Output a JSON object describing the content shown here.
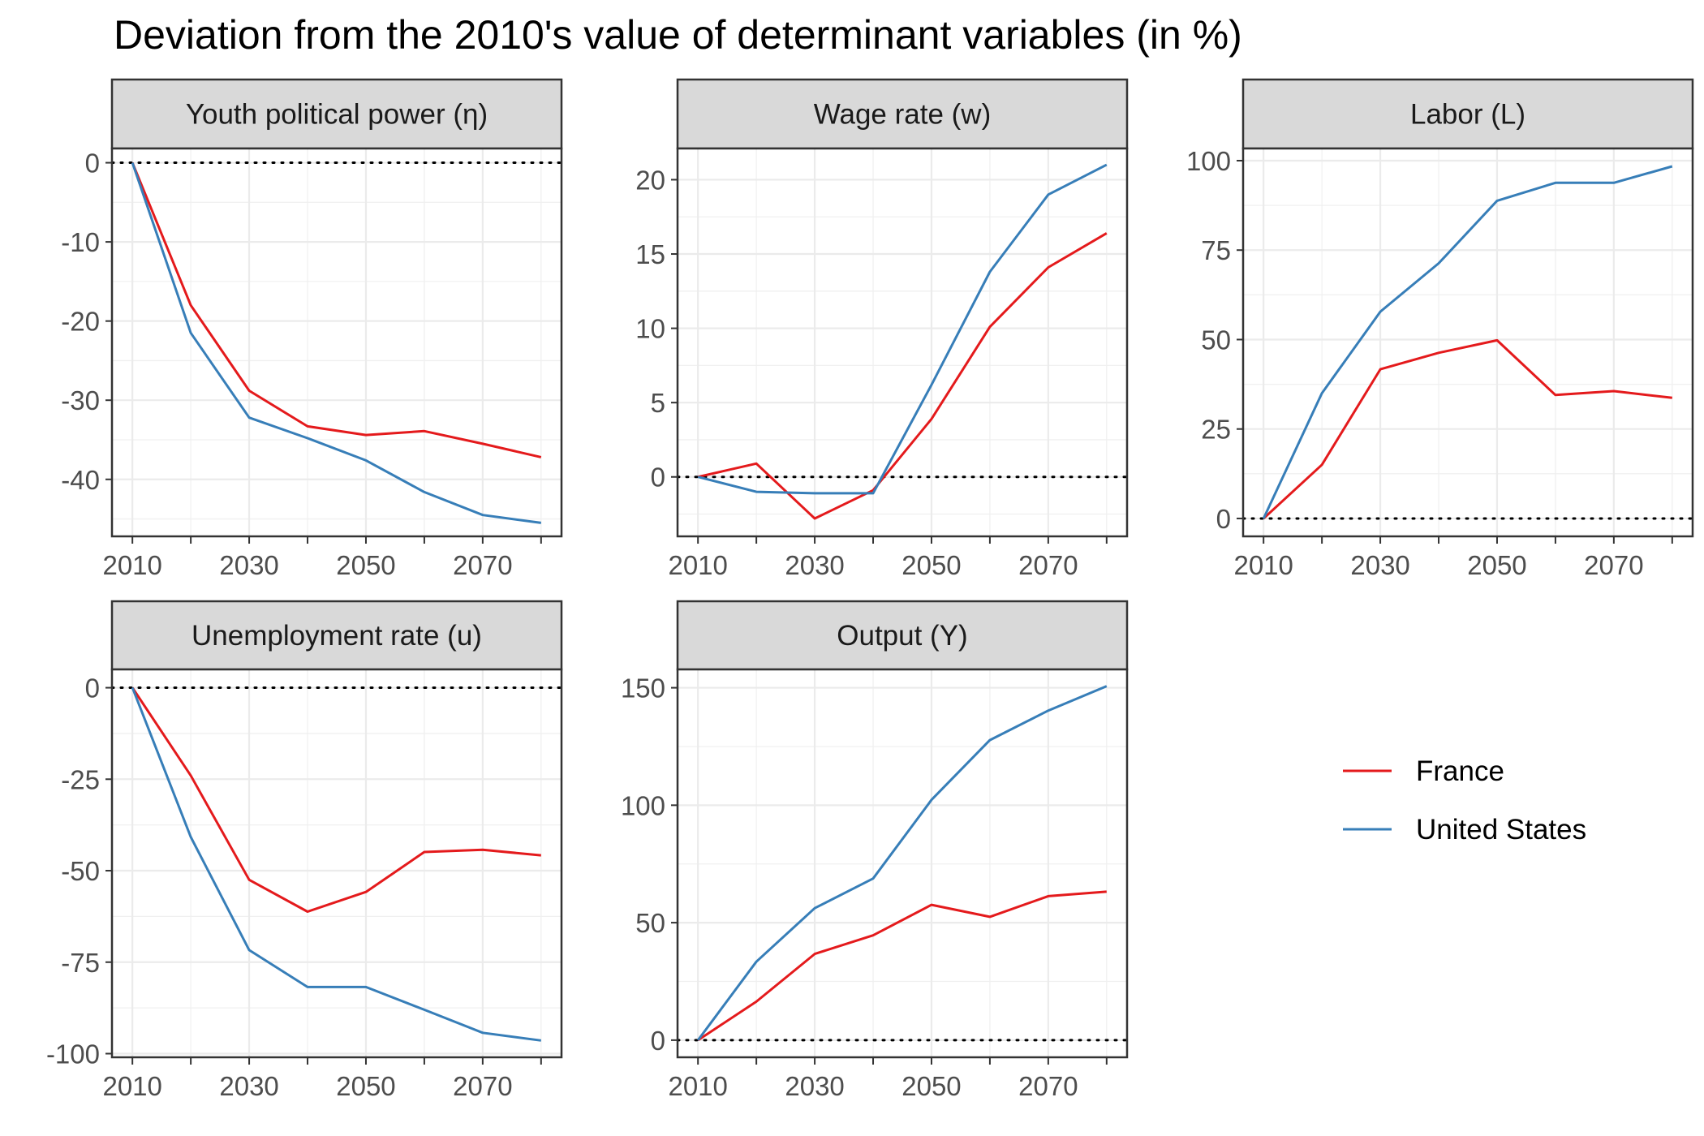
{
  "title": "Deviation from the 2010's value of determinant variables (in %)",
  "colors": {
    "France": "#e41a1c",
    "United States": "#377eb8"
  },
  "legend": {
    "placement": "right",
    "entries": [
      {
        "name": "France",
        "color": "#e41a1c"
      },
      {
        "name": "United States",
        "color": "#377eb8"
      }
    ]
  },
  "chart_data": [
    {
      "type": "line",
      "title": "Youth political power (η)",
      "x": [
        2010,
        2020,
        2030,
        2040,
        2050,
        2060,
        2070,
        2080
      ],
      "x_ticks": [
        2010,
        2030,
        2050,
        2070
      ],
      "y_ticks": [
        0,
        -10,
        -20,
        -30,
        -40
      ],
      "ylim": [
        -47.2,
        1.8
      ],
      "reference_line": 0,
      "grid": true,
      "series": [
        {
          "name": "France",
          "values": [
            0,
            -18,
            -28.8,
            -33.3,
            -34.4,
            -33.9,
            -35.5,
            -37.2
          ]
        },
        {
          "name": "United States",
          "values": [
            0,
            -21.5,
            -32.2,
            -34.8,
            -37.6,
            -41.6,
            -44.5,
            -45.5
          ]
        }
      ]
    },
    {
      "type": "line",
      "title": "Wage rate (w)",
      "x": [
        2010,
        2020,
        2030,
        2040,
        2050,
        2060,
        2070,
        2080
      ],
      "x_ticks": [
        2010,
        2030,
        2050,
        2070
      ],
      "y_ticks": [
        0,
        5,
        10,
        15,
        20
      ],
      "ylim": [
        -4,
        22.1
      ],
      "reference_line": 0,
      "grid": true,
      "series": [
        {
          "name": "France",
          "values": [
            0,
            0.9,
            -2.8,
            -0.9,
            3.9,
            10.1,
            14.1,
            16.4
          ]
        },
        {
          "name": "United States",
          "values": [
            0,
            -1,
            -1.1,
            -1.1,
            6.2,
            13.8,
            19,
            21
          ]
        }
      ]
    },
    {
      "type": "line",
      "title": "Labor (L)",
      "x": [
        2010,
        2020,
        2030,
        2040,
        2050,
        2060,
        2070,
        2080
      ],
      "x_ticks": [
        2010,
        2030,
        2050,
        2070
      ],
      "y_ticks": [
        0,
        25,
        50,
        75,
        100
      ],
      "ylim": [
        -5,
        103.4
      ],
      "reference_line": 0,
      "grid": true,
      "series": [
        {
          "name": "France",
          "values": [
            0,
            15,
            41.7,
            46.3,
            49.8,
            34.5,
            35.6,
            33.7
          ]
        },
        {
          "name": "United States",
          "values": [
            0,
            35,
            57.8,
            71.3,
            88.8,
            93.8,
            93.8,
            98.4
          ]
        }
      ]
    },
    {
      "type": "line",
      "title": "Unemployment rate (u)",
      "x": [
        2010,
        2020,
        2030,
        2040,
        2050,
        2060,
        2070,
        2080
      ],
      "x_ticks": [
        2010,
        2030,
        2050,
        2070
      ],
      "y_ticks": [
        0,
        -25,
        -50,
        -75,
        -100
      ],
      "ylim": [
        -101,
        5
      ],
      "reference_line": 0,
      "grid": true,
      "series": [
        {
          "name": "France",
          "values": [
            0,
            -24,
            -52.5,
            -61.2,
            -55.8,
            -44.9,
            -44.3,
            -45.8
          ]
        },
        {
          "name": "United States",
          "values": [
            0,
            -40.8,
            -71.7,
            -81.8,
            -81.8,
            -88,
            -94.3,
            -96.4
          ]
        }
      ]
    },
    {
      "type": "line",
      "title": "Output (Y)",
      "x": [
        2010,
        2020,
        2030,
        2040,
        2050,
        2060,
        2070,
        2080
      ],
      "x_ticks": [
        2010,
        2030,
        2050,
        2070
      ],
      "y_ticks": [
        0,
        50,
        100,
        150
      ],
      "ylim": [
        -7.3,
        157.8
      ],
      "reference_line": 0,
      "grid": true,
      "series": [
        {
          "name": "France",
          "values": [
            0,
            16.4,
            36.7,
            44.6,
            57.6,
            52.5,
            61.3,
            63.2
          ]
        },
        {
          "name": "United States",
          "values": [
            0,
            33.4,
            56.2,
            68.8,
            102.3,
            127.7,
            140.3,
            150.7
          ]
        }
      ]
    }
  ]
}
